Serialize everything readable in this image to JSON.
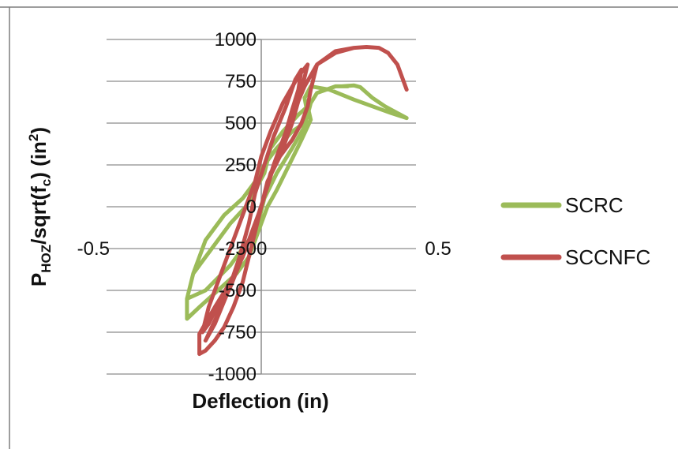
{
  "chart_data": {
    "type": "line",
    "xlabel": "Deflection (in)",
    "ylabel": {
      "main": "P",
      "main_sub": "HOZ",
      "mid": "/sqrt(f",
      "mid_sub": "c",
      "end": ")  (in",
      "end_sup": "2",
      "close": ")"
    },
    "xlim": [
      -0.5,
      0.5
    ],
    "ylim": [
      -1000,
      1000
    ],
    "x_ticks": [
      -0.5,
      0,
      0.5
    ],
    "x_tick_labels": [
      "-0.5",
      "0",
      "0.5"
    ],
    "y_ticks": [
      1000,
      750,
      500,
      250,
      0,
      -250,
      -500,
      -750,
      -1000
    ],
    "y_tick_labels": [
      "1000",
      "750",
      "500",
      "250",
      "0",
      "-250",
      "-500",
      "-750",
      "-1000"
    ],
    "grid": "horizontal",
    "legend_position": "right",
    "series": [
      {
        "name": "SCRC",
        "color": "#9BBB59",
        "x": [
          0.26,
          0.3,
          0.32,
          0.36,
          0.4,
          0.44,
          0.47,
          0.42,
          0.36,
          0.3,
          0.22,
          0.16,
          0.14,
          0.15,
          0.14,
          0.1,
          0.05,
          0.01,
          -0.02,
          -0.06,
          -0.12,
          -0.18,
          -0.22,
          -0.24,
          -0.24,
          -0.2,
          -0.14,
          -0.08,
          -0.04,
          -0.02,
          0.0,
          0.02,
          0.05,
          0.09,
          0.13,
          0.16,
          0.15,
          0.12,
          0.07,
          0.03,
          0.01,
          -0.02,
          -0.05,
          -0.1,
          -0.16,
          -0.22,
          -0.24,
          -0.18,
          -0.1,
          -0.04,
          -0.01,
          0.01,
          0.05,
          0.1,
          0.14,
          0.16,
          0.18,
          0.21,
          0.24,
          0.28
        ],
        "y": [
          720,
          725,
          715,
          650,
          600,
          560,
          530,
          560,
          600,
          640,
          700,
          720,
          650,
          550,
          500,
          450,
          350,
          250,
          150,
          50,
          -50,
          -200,
          -400,
          -550,
          -670,
          -600,
          -500,
          -400,
          -300,
          -200,
          -100,
          0,
          100,
          250,
          400,
          520,
          600,
          550,
          450,
          350,
          200,
          100,
          0,
          -100,
          -250,
          -400,
          -550,
          -500,
          -350,
          -200,
          -100,
          50,
          200,
          350,
          480,
          620,
          680,
          700,
          720,
          720
        ]
      },
      {
        "name": "SCCNFC",
        "color": "#C0504D",
        "x": [
          0.47,
          0.44,
          0.41,
          0.38,
          0.34,
          0.3,
          0.24,
          0.18,
          0.16,
          0.15,
          0.13,
          0.1,
          0.06,
          0.02,
          0.0,
          -0.02,
          -0.04,
          -0.06,
          -0.09,
          -0.12,
          -0.15,
          -0.18,
          -0.2,
          -0.2,
          -0.15,
          -0.1,
          -0.06,
          -0.03,
          0.0,
          0.03,
          0.07,
          0.1,
          0.13,
          0.15,
          0.12,
          0.07,
          0.03,
          0.0,
          -0.02,
          -0.05,
          -0.09,
          -0.13,
          -0.17,
          -0.19,
          -0.17,
          -0.13,
          -0.08,
          -0.04,
          -0.01,
          0.02,
          0.05,
          0.08,
          0.1,
          0.12,
          0.13,
          0.11,
          0.08,
          0.04,
          0.01,
          -0.02,
          -0.04,
          -0.07,
          -0.11,
          -0.15,
          -0.18,
          -0.15,
          -0.1,
          -0.05,
          0.0,
          0.04,
          0.09,
          0.14,
          0.18,
          0.24,
          0.3
        ],
        "y": [
          700,
          850,
          920,
          950,
          955,
          950,
          930,
          850,
          700,
          600,
          500,
          400,
          300,
          150,
          0,
          -150,
          -300,
          -450,
          -600,
          -720,
          -800,
          -860,
          -880,
          -760,
          -600,
          -450,
          -300,
          -150,
          0,
          200,
          350,
          500,
          700,
          850,
          780,
          620,
          450,
          300,
          150,
          0,
          -200,
          -400,
          -600,
          -750,
          -700,
          -550,
          -380,
          -200,
          -50,
          120,
          300,
          450,
          580,
          700,
          820,
          760,
          600,
          420,
          250,
          80,
          -100,
          -300,
          -520,
          -700,
          -800,
          -680,
          -480,
          -250,
          0,
          250,
          500,
          720,
          850,
          920,
          950
        ]
      }
    ]
  }
}
